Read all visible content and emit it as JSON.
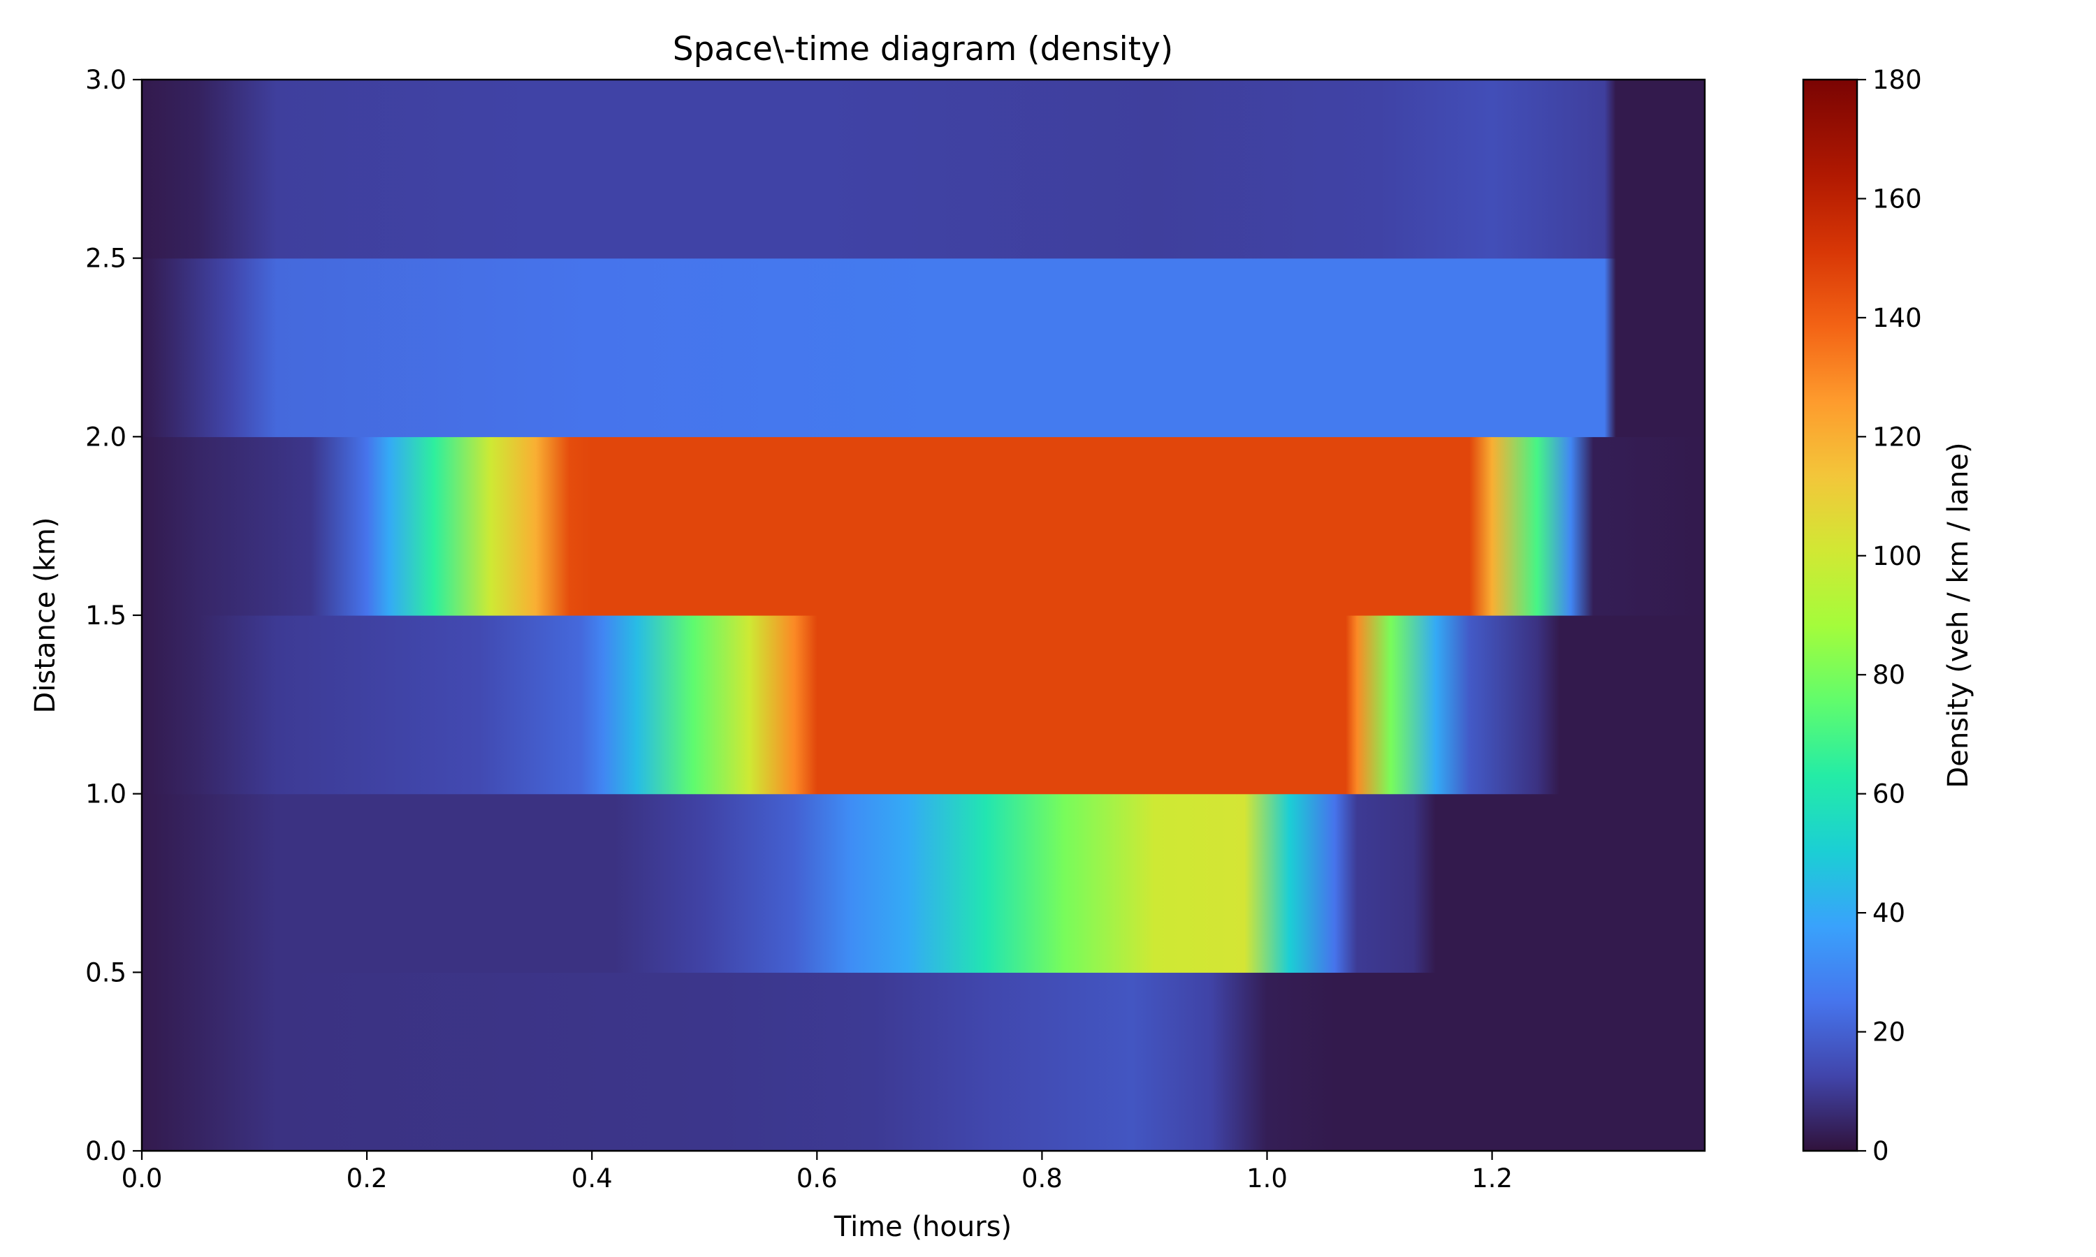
{
  "chart_data": {
    "type": "heatmap",
    "title": "Space\\-time diagram (density)",
    "xlabel": "Time (hours)",
    "ylabel": "Distance (km)",
    "colorbar_label": "Density (veh / km / lane)",
    "xlim": [
      0.0,
      1.389
    ],
    "ylim": [
      0.0,
      3.0
    ],
    "clim": [
      0,
      180
    ],
    "colormap": "turbo",
    "x_ticks": [
      "0.0",
      "0.2",
      "0.4",
      "0.6",
      "0.8",
      "1.0",
      "1.2"
    ],
    "y_ticks": [
      "0.0",
      "0.5",
      "1.0",
      "1.5",
      "2.0",
      "2.5",
      "3.0"
    ],
    "colorbar_ticks": [
      "0",
      "20",
      "40",
      "60",
      "80",
      "100",
      "120",
      "140",
      "160",
      "180"
    ],
    "cell_height_km": 0.5,
    "rows": [
      {
        "y_start": 0.0,
        "points": [
          [
            0.0,
            2
          ],
          [
            0.06,
            5
          ],
          [
            0.12,
            8
          ],
          [
            0.5,
            9
          ],
          [
            0.65,
            10
          ],
          [
            0.75,
            13
          ],
          [
            0.88,
            17
          ],
          [
            0.95,
            12
          ],
          [
            1.0,
            3
          ],
          [
            1.06,
            2
          ],
          [
            1.389,
            2
          ]
        ]
      },
      {
        "y_start": 0.5,
        "points": [
          [
            0.0,
            2
          ],
          [
            0.06,
            5
          ],
          [
            0.12,
            8
          ],
          [
            0.42,
            8
          ],
          [
            0.5,
            12
          ],
          [
            0.58,
            20
          ],
          [
            0.63,
            32
          ],
          [
            0.68,
            40
          ],
          [
            0.75,
            60
          ],
          [
            0.82,
            80
          ],
          [
            0.9,
            100
          ],
          [
            0.98,
            102
          ],
          [
            1.02,
            50
          ],
          [
            1.06,
            25
          ],
          [
            1.08,
            10
          ],
          [
            1.13,
            8
          ],
          [
            1.15,
            2
          ],
          [
            1.389,
            2
          ]
        ]
      },
      {
        "y_start": 1.0,
        "points": [
          [
            0.0,
            2
          ],
          [
            0.05,
            5
          ],
          [
            0.12,
            10
          ],
          [
            0.3,
            14
          ],
          [
            0.39,
            22
          ],
          [
            0.41,
            30
          ],
          [
            0.44,
            45
          ],
          [
            0.49,
            75
          ],
          [
            0.54,
            100
          ],
          [
            0.58,
            130
          ],
          [
            0.6,
            147
          ],
          [
            1.07,
            147
          ],
          [
            1.08,
            130
          ],
          [
            1.11,
            80
          ],
          [
            1.15,
            40
          ],
          [
            1.18,
            18
          ],
          [
            1.24,
            8
          ],
          [
            1.26,
            2
          ],
          [
            1.389,
            2
          ]
        ]
      },
      {
        "y_start": 1.5,
        "points": [
          [
            0.0,
            2
          ],
          [
            0.05,
            5
          ],
          [
            0.15,
            9
          ],
          [
            0.2,
            25
          ],
          [
            0.22,
            40
          ],
          [
            0.26,
            65
          ],
          [
            0.31,
            100
          ],
          [
            0.35,
            120
          ],
          [
            0.38,
            145
          ],
          [
            0.4,
            147
          ],
          [
            1.18,
            147
          ],
          [
            1.2,
            120
          ],
          [
            1.24,
            70
          ],
          [
            1.27,
            30
          ],
          [
            1.29,
            3
          ],
          [
            1.389,
            2
          ]
        ]
      },
      {
        "y_start": 2.0,
        "points": [
          [
            0.0,
            2
          ],
          [
            0.03,
            6
          ],
          [
            0.08,
            13
          ],
          [
            0.12,
            22
          ],
          [
            0.4,
            25
          ],
          [
            0.7,
            27
          ],
          [
            1.0,
            27
          ],
          [
            1.3,
            27
          ],
          [
            1.31,
            2
          ],
          [
            1.389,
            2
          ]
        ]
      },
      {
        "y_start": 2.5,
        "points": [
          [
            0.0,
            2
          ],
          [
            0.05,
            4
          ],
          [
            0.12,
            11
          ],
          [
            0.35,
            12
          ],
          [
            0.6,
            12
          ],
          [
            0.9,
            11
          ],
          [
            1.1,
            12
          ],
          [
            1.2,
            15
          ],
          [
            1.3,
            11
          ],
          [
            1.31,
            2
          ],
          [
            1.389,
            2
          ]
        ]
      }
    ]
  }
}
